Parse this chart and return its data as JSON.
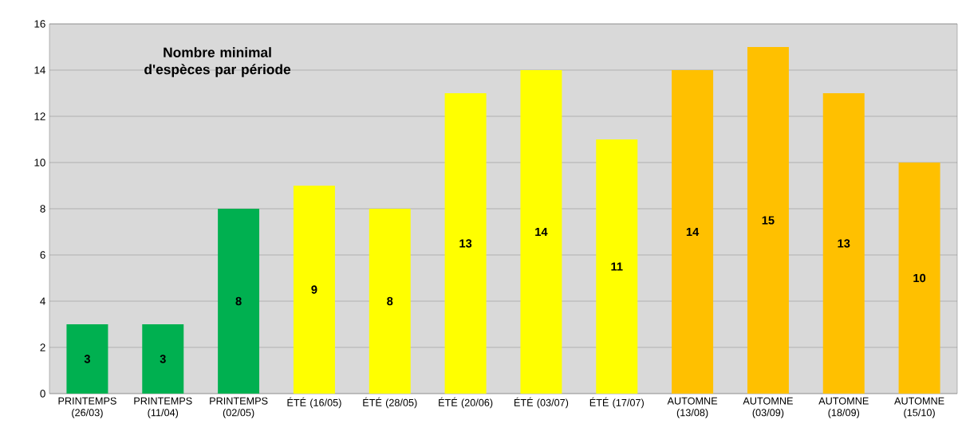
{
  "chart_data": {
    "type": "bar",
    "title": "Nombre minimal d'espèces par période",
    "categories": [
      "PRINTEMPS (26/03)",
      "PRINTEMPS (11/04)",
      "PRINTEMPS (02/05)",
      "ÉTÉ (16/05)",
      "ÉTÉ (28/05)",
      "ÉTÉ (20/06)",
      "ÉTÉ (03/07)",
      "ÉTÉ (17/07)",
      "AUTOMNE (13/08)",
      "AUTOMNE (03/09)",
      "AUTOMNE (18/09)",
      "AUTOMNE (15/10)"
    ],
    "values": [
      3,
      3,
      8,
      9,
      8,
      13,
      14,
      11,
      14,
      15,
      13,
      10
    ],
    "colors": [
      "#00b050",
      "#00b050",
      "#00b050",
      "#ffff00",
      "#ffff00",
      "#ffff00",
      "#ffff00",
      "#ffff00",
      "#ffc000",
      "#ffc000",
      "#ffc000",
      "#ffc000"
    ],
    "ylim": [
      0,
      16
    ],
    "yticks": [
      0,
      2,
      4,
      6,
      8,
      10,
      12,
      14,
      16
    ],
    "grid": "y",
    "data_labels": true
  }
}
